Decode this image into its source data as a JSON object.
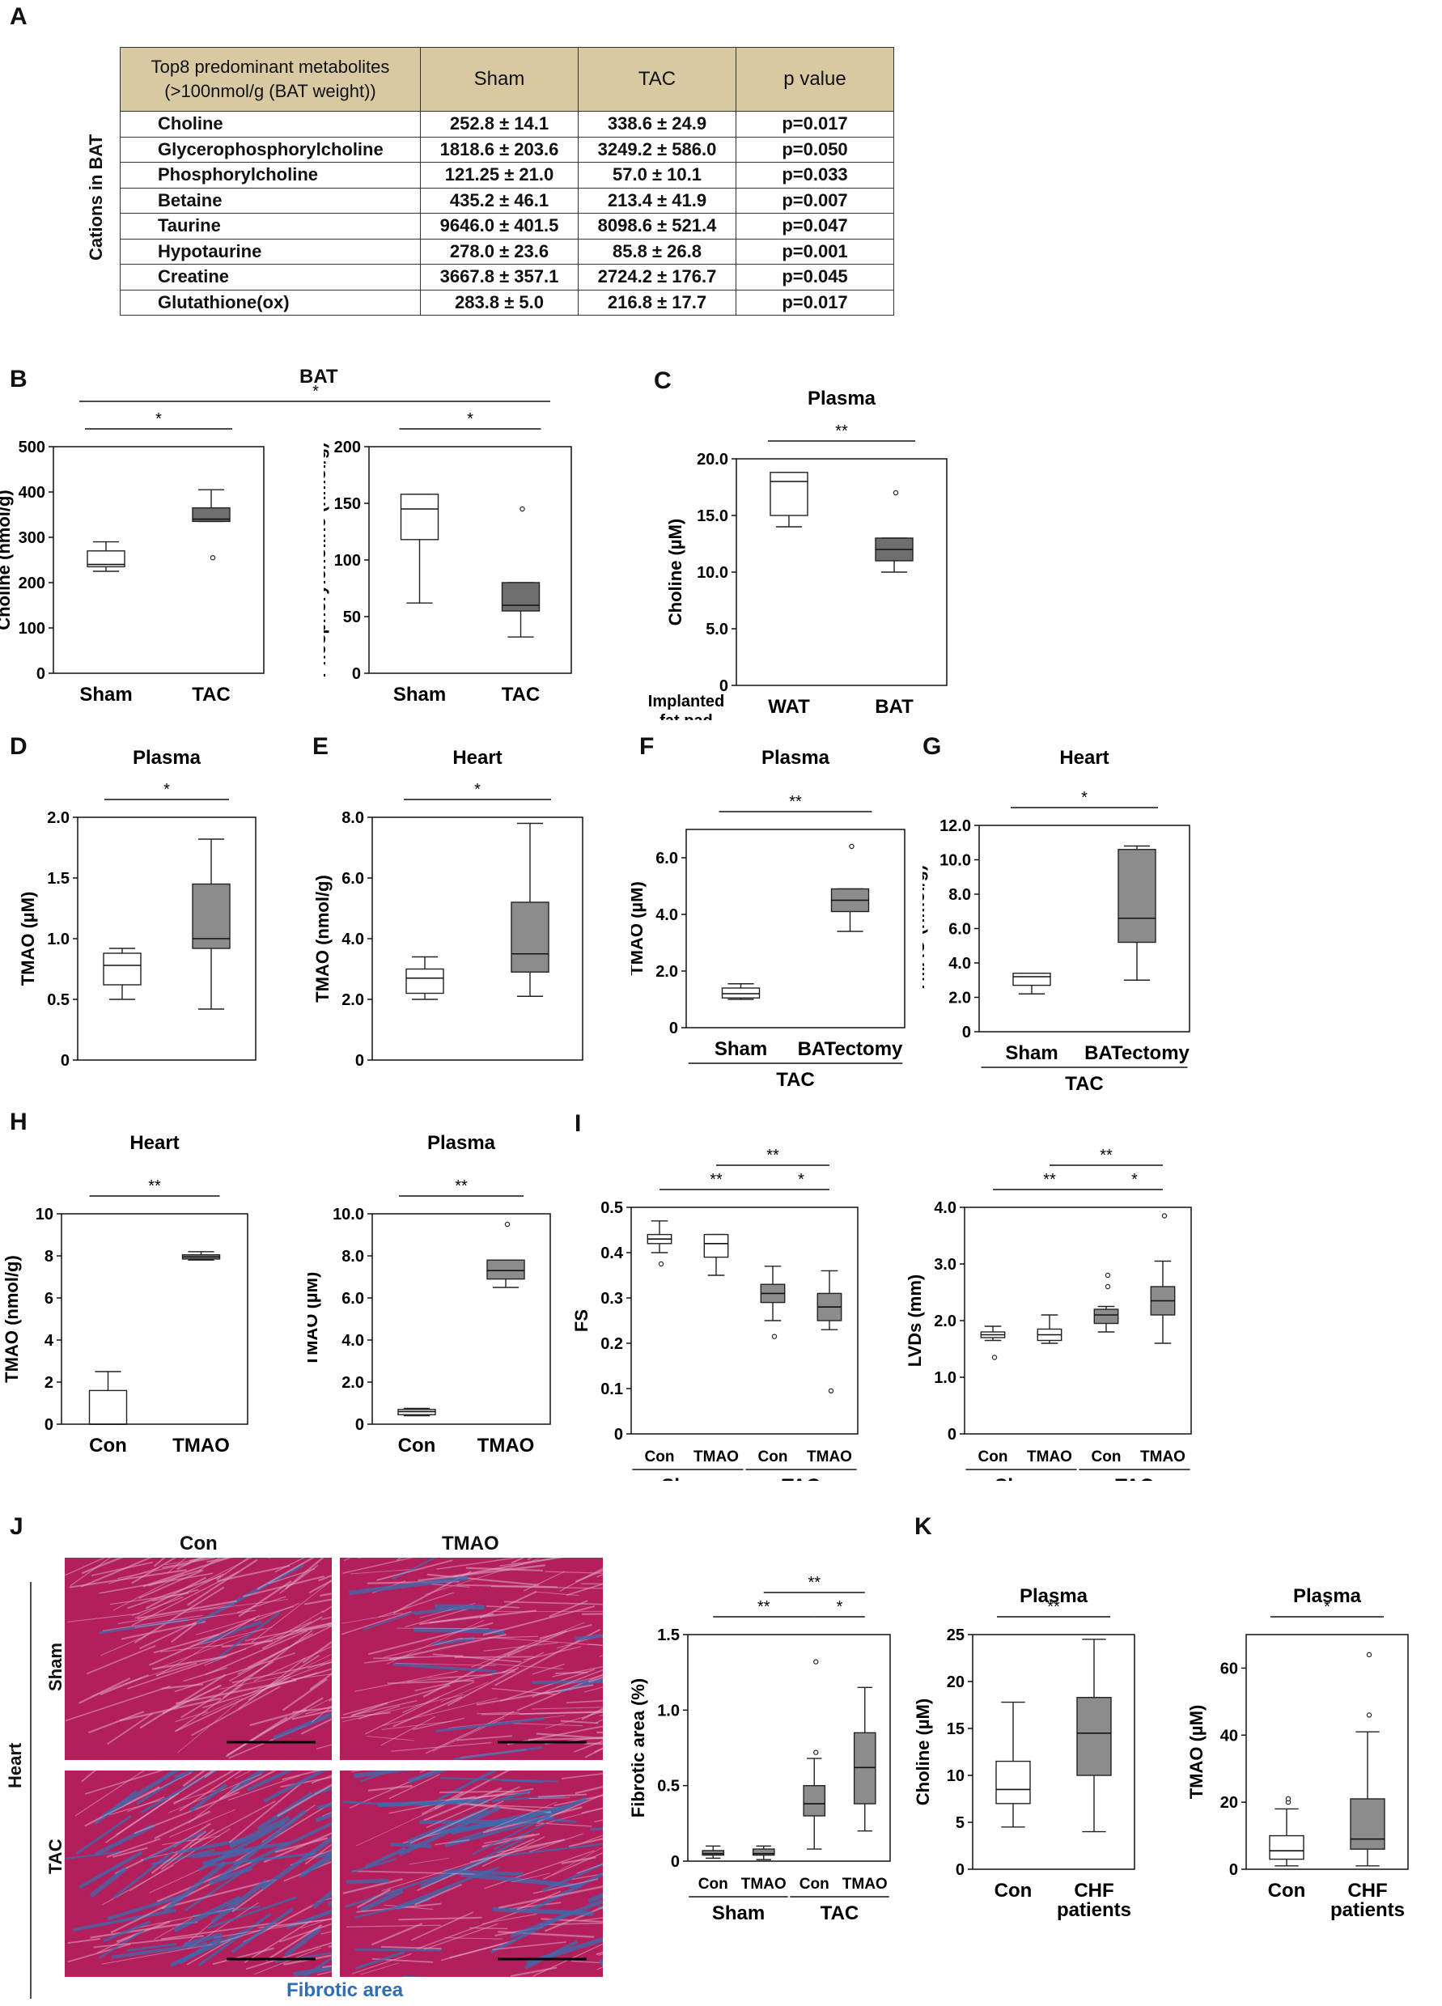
{
  "panel_letters": [
    "A",
    "B",
    "C",
    "D",
    "E",
    "F",
    "G",
    "H",
    "I",
    "J",
    "K"
  ],
  "table": {
    "side_label": "Cations in BAT",
    "header": [
      "Top8 predominant metabolites\n(>100nmol/g (BAT weight))",
      "Sham",
      "TAC",
      "p value"
    ],
    "rows": [
      [
        "Choline",
        "252.8 ± 14.1",
        "338.6 ± 24.9",
        "p=0.017"
      ],
      [
        "Glycerophosphorylcholine",
        "1818.6 ± 203.6",
        "3249.2 ± 586.0",
        "p=0.050"
      ],
      [
        "Phosphorylcholine",
        "121.25 ± 21.0",
        "57.0 ± 10.1",
        "p=0.033"
      ],
      [
        "Betaine",
        "435.2 ± 46.1",
        "213.4 ± 41.9",
        "p=0.007"
      ],
      [
        "Taurine",
        "9646.0 ± 401.5",
        "8098.6 ± 521.4",
        "p=0.047"
      ],
      [
        "Hypotaurine",
        "278.0 ± 23.6",
        "85.8 ± 26.8",
        "p=0.001"
      ],
      [
        "Creatine",
        "3667.8 ± 357.1",
        "2724.2 ± 176.7",
        "p=0.045"
      ],
      [
        "Glutathione(ox)",
        "283.8 ± 5.0",
        "216.8 ± 17.7",
        "p=0.017"
      ]
    ]
  },
  "panel_b_title": "BAT",
  "panel_b_star": "*",
  "panel_j": {
    "col_labels": [
      "Con",
      "TMAO"
    ],
    "row_labels": [
      "Sham",
      "TAC"
    ],
    "side_label": "Heart",
    "caption": "Fibrotic area",
    "colors": {
      "muscle": "#b21f5a",
      "fibrosis": "#3a6cb0",
      "fiber_light": "#e0a8c8"
    }
  },
  "colors": {
    "white_box": "#ffffff",
    "gray_box": "#8c8c8c",
    "dark_box": "#6e6e6e",
    "caption_blue": "#2f6db5",
    "table_header": "#d8c9a3"
  },
  "chart_data": [
    {
      "id": "B1",
      "type": "box",
      "title": "",
      "ylabel": "Choline (nmol/g)",
      "ylim": [
        0,
        500
      ],
      "yticks": [
        "0",
        "100",
        "200",
        "300",
        "400",
        "500"
      ],
      "categories": [
        "Sham",
        "TAC"
      ],
      "group_labels": [],
      "sig": [
        {
          "from": 0,
          "to": 1,
          "label": "*",
          "level": 0
        }
      ],
      "boxes": [
        {
          "min": 225,
          "q1": 235,
          "med": 240,
          "q3": 270,
          "max": 290,
          "fill": "white",
          "outliers": []
        },
        {
          "min": 335,
          "q1": 335,
          "med": 340,
          "q3": 365,
          "max": 405,
          "fill": "dark",
          "outliers": [
            255
          ]
        }
      ]
    },
    {
      "id": "B2",
      "type": "box",
      "title": "",
      "ylabel": "Phosphorylcholine (nmol/g)",
      "ylim": [
        0,
        200
      ],
      "yticks": [
        "0",
        "50",
        "100",
        "150",
        "200"
      ],
      "categories": [
        "Sham",
        "TAC"
      ],
      "group_labels": [],
      "sig": [
        {
          "from": 0,
          "to": 1,
          "label": "*",
          "level": 0
        }
      ],
      "boxes": [
        {
          "min": 62,
          "q1": 118,
          "med": 145,
          "q3": 158,
          "max": 158,
          "fill": "white",
          "outliers": []
        },
        {
          "min": 32,
          "q1": 55,
          "med": 60,
          "q3": 80,
          "max": 80,
          "fill": "dark",
          "outliers": [
            145
          ]
        }
      ]
    },
    {
      "id": "C",
      "type": "box",
      "title": "Plasma",
      "ylabel": "Choline (µM)",
      "ylim": [
        0,
        20
      ],
      "yticks": [
        "0",
        "5.0",
        "10.0",
        "15.0",
        "20.0"
      ],
      "categories": [
        "WAT",
        "BAT"
      ],
      "xprefix": "Implanted\nfat pad",
      "group_labels": [],
      "sig": [
        {
          "from": 0,
          "to": 1,
          "label": "**",
          "level": 0
        }
      ],
      "boxes": [
        {
          "min": 14,
          "q1": 15,
          "med": 18,
          "q3": 18.8,
          "max": 18.8,
          "fill": "white",
          "outliers": []
        },
        {
          "min": 10,
          "q1": 11,
          "med": 12,
          "q3": 13,
          "max": 13,
          "fill": "dark",
          "outliers": [
            17
          ]
        }
      ]
    },
    {
      "id": "D",
      "type": "box",
      "title": "Plasma",
      "ylabel": "TMAO (µM)",
      "ylim": [
        0,
        2
      ],
      "yticks": [
        "0",
        "0.5",
        "1.0",
        "1.5",
        "2.0"
      ],
      "categories": [
        "Sham",
        "TAC"
      ],
      "group_labels": [],
      "sig": [
        {
          "from": 0,
          "to": 1,
          "label": "*",
          "level": 0
        }
      ],
      "boxes": [
        {
          "min": 0.5,
          "q1": 0.62,
          "med": 0.78,
          "q3": 0.88,
          "max": 0.92,
          "fill": "white",
          "outliers": []
        },
        {
          "min": 0.42,
          "q1": 0.92,
          "med": 1.0,
          "q3": 1.45,
          "max": 1.82,
          "fill": "gray",
          "outliers": []
        }
      ]
    },
    {
      "id": "E",
      "type": "box",
      "title": "Heart",
      "ylabel": "TMAO (nmol/g)",
      "ylim": [
        0,
        8
      ],
      "yticks": [
        "0",
        "2.0",
        "4.0",
        "6.0",
        "8.0"
      ],
      "categories": [
        "Sham",
        "TAC"
      ],
      "group_labels": [],
      "sig": [
        {
          "from": 0,
          "to": 1,
          "label": "*",
          "level": 0
        }
      ],
      "boxes": [
        {
          "min": 2.0,
          "q1": 2.2,
          "med": 2.7,
          "q3": 3.0,
          "max": 3.4,
          "fill": "white",
          "outliers": []
        },
        {
          "min": 2.1,
          "q1": 2.9,
          "med": 3.5,
          "q3": 5.2,
          "max": 7.8,
          "fill": "gray",
          "outliers": []
        }
      ]
    },
    {
      "id": "F",
      "type": "box",
      "title": "Plasma",
      "ylabel": "TMAO (µM)",
      "ylim": [
        0,
        7
      ],
      "yticks": [
        "0",
        "2.0",
        "4.0",
        "6.0"
      ],
      "categories": [
        "Sham",
        "BATectomy"
      ],
      "group_labels": [
        {
          "from": 0,
          "to": 1,
          "label": "TAC"
        }
      ],
      "sig": [
        {
          "from": 0,
          "to": 1,
          "label": "**",
          "level": 0
        }
      ],
      "boxes": [
        {
          "min": 1.0,
          "q1": 1.05,
          "med": 1.2,
          "q3": 1.4,
          "max": 1.55,
          "fill": "white",
          "outliers": []
        },
        {
          "min": 3.4,
          "q1": 4.1,
          "med": 4.5,
          "q3": 4.9,
          "max": 4.9,
          "fill": "gray",
          "outliers": [
            6.4
          ]
        }
      ]
    },
    {
      "id": "G",
      "type": "box",
      "title": "Heart",
      "ylabel": "TMAO (nmol/g)",
      "ylim": [
        0,
        12
      ],
      "yticks": [
        "0",
        "2.0",
        "4.0",
        "6.0",
        "8.0",
        "10.0",
        "12.0"
      ],
      "categories": [
        "Sham",
        "BATectomy"
      ],
      "group_labels": [
        {
          "from": 0,
          "to": 1,
          "label": "TAC"
        }
      ],
      "sig": [
        {
          "from": 0,
          "to": 1,
          "label": "*",
          "level": 0
        }
      ],
      "boxes": [
        {
          "min": 2.2,
          "q1": 2.7,
          "med": 3.2,
          "q3": 3.4,
          "max": 3.4,
          "fill": "white",
          "outliers": []
        },
        {
          "min": 3.0,
          "q1": 5.2,
          "med": 6.6,
          "q3": 10.6,
          "max": 10.8,
          "fill": "gray",
          "outliers": []
        }
      ]
    },
    {
      "id": "H1",
      "type": "box",
      "title": "Heart",
      "ylabel": "TMAO (nmol/g)",
      "ylim": [
        0,
        10
      ],
      "yticks": [
        "0",
        "2",
        "4",
        "6",
        "8",
        "10"
      ],
      "categories": [
        "Con",
        "TMAO"
      ],
      "group_labels": [],
      "sig": [
        {
          "from": 0,
          "to": 1,
          "label": "**",
          "level": 0
        }
      ],
      "boxes": [
        {
          "min": 0,
          "q1": 0,
          "med": 0,
          "q3": 1.6,
          "max": 2.5,
          "fill": "white",
          "outliers": []
        },
        {
          "min": 7.8,
          "q1": 7.85,
          "med": 7.95,
          "q3": 8.05,
          "max": 8.2,
          "fill": "gray",
          "outliers": []
        }
      ]
    },
    {
      "id": "H2",
      "type": "box",
      "title": "Plasma",
      "ylabel": "TMAO (µM)",
      "ylim": [
        0,
        10
      ],
      "yticks": [
        "0",
        "2.0",
        "4.0",
        "6.0",
        "8.0",
        "10.0"
      ],
      "categories": [
        "Con",
        "TMAO"
      ],
      "group_labels": [],
      "sig": [
        {
          "from": 0,
          "to": 1,
          "label": "**",
          "level": 0
        }
      ],
      "boxes": [
        {
          "min": 0.4,
          "q1": 0.45,
          "med": 0.6,
          "q3": 0.7,
          "max": 0.75,
          "fill": "white",
          "outliers": []
        },
        {
          "min": 6.5,
          "q1": 6.9,
          "med": 7.3,
          "q3": 7.8,
          "max": 7.8,
          "fill": "gray",
          "outliers": [
            9.5
          ]
        }
      ]
    },
    {
      "id": "I1",
      "type": "box",
      "title": "",
      "ylabel": "FS",
      "ylim": [
        0,
        0.5
      ],
      "yticks": [
        "0",
        "0.1",
        "0.2",
        "0.3",
        "0.4",
        "0.5"
      ],
      "categories": [
        "Con",
        "TMAO",
        "Con",
        "TMAO"
      ],
      "group_labels": [
        {
          "from": 0,
          "to": 1,
          "label": "Sham"
        },
        {
          "from": 2,
          "to": 3,
          "label": "TAC"
        }
      ],
      "sig": [
        {
          "from": 2,
          "to": 3,
          "label": "*",
          "level": 0
        },
        {
          "from": 0,
          "to": 2,
          "label": "**",
          "level": 0
        },
        {
          "from": 1,
          "to": 3,
          "label": "**",
          "level": 1
        }
      ],
      "boxes": [
        {
          "min": 0.4,
          "q1": 0.42,
          "med": 0.43,
          "q3": 0.44,
          "max": 0.47,
          "fill": "white",
          "outliers": [
            0.375
          ]
        },
        {
          "min": 0.35,
          "q1": 0.39,
          "med": 0.42,
          "q3": 0.44,
          "max": 0.44,
          "fill": "white",
          "outliers": []
        },
        {
          "min": 0.25,
          "q1": 0.29,
          "med": 0.31,
          "q3": 0.33,
          "max": 0.37,
          "fill": "gray",
          "outliers": [
            0.215
          ]
        },
        {
          "min": 0.23,
          "q1": 0.25,
          "med": 0.28,
          "q3": 0.31,
          "max": 0.36,
          "fill": "gray",
          "outliers": [
            0.095
          ]
        }
      ]
    },
    {
      "id": "I2",
      "type": "box",
      "title": "",
      "ylabel": "LVDs (mm)",
      "ylim": [
        0,
        4
      ],
      "yticks": [
        "0",
        "1.0",
        "2.0",
        "3.0",
        "4.0"
      ],
      "categories": [
        "Con",
        "TMAO",
        "Con",
        "TMAO"
      ],
      "group_labels": [
        {
          "from": 0,
          "to": 1,
          "label": "Sham"
        },
        {
          "from": 2,
          "to": 3,
          "label": "TAC"
        }
      ],
      "sig": [
        {
          "from": 2,
          "to": 3,
          "label": "*",
          "level": 0
        },
        {
          "from": 0,
          "to": 2,
          "label": "**",
          "level": 0
        },
        {
          "from": 1,
          "to": 3,
          "label": "**",
          "level": 1
        }
      ],
      "boxes": [
        {
          "min": 1.65,
          "q1": 1.7,
          "med": 1.75,
          "q3": 1.8,
          "max": 1.9,
          "fill": "white",
          "outliers": [
            1.35
          ]
        },
        {
          "min": 1.6,
          "q1": 1.65,
          "med": 1.75,
          "q3": 1.85,
          "max": 2.1,
          "fill": "white",
          "outliers": []
        },
        {
          "min": 1.8,
          "q1": 1.95,
          "med": 2.1,
          "q3": 2.2,
          "max": 2.25,
          "fill": "gray",
          "outliers": [
            2.6,
            2.8
          ]
        },
        {
          "min": 1.6,
          "q1": 2.1,
          "med": 2.35,
          "q3": 2.6,
          "max": 3.05,
          "fill": "gray",
          "outliers": [
            3.85
          ]
        }
      ]
    },
    {
      "id": "J",
      "type": "box",
      "title": "",
      "ylabel": "Fibrotic area (%)",
      "ylim": [
        0,
        1.5
      ],
      "yticks": [
        "0",
        "0.5",
        "1.0",
        "1.5"
      ],
      "categories": [
        "Con",
        "TMAO",
        "Con",
        "TMAO"
      ],
      "group_labels": [
        {
          "from": 0,
          "to": 1,
          "label": "Sham"
        },
        {
          "from": 2,
          "to": 3,
          "label": "TAC"
        }
      ],
      "sig": [
        {
          "from": 2,
          "to": 3,
          "label": "*",
          "level": 0
        },
        {
          "from": 0,
          "to": 2,
          "label": "**",
          "level": 0
        },
        {
          "from": 1,
          "to": 3,
          "label": "**",
          "level": 1
        }
      ],
      "boxes": [
        {
          "min": 0.02,
          "q1": 0.04,
          "med": 0.05,
          "q3": 0.07,
          "max": 0.1,
          "fill": "gray",
          "outliers": []
        },
        {
          "min": 0.01,
          "q1": 0.04,
          "med": 0.05,
          "q3": 0.08,
          "max": 0.1,
          "fill": "gray",
          "outliers": []
        },
        {
          "min": 0.08,
          "q1": 0.3,
          "med": 0.38,
          "q3": 0.5,
          "max": 0.68,
          "fill": "gray",
          "outliers": [
            0.72,
            1.32
          ]
        },
        {
          "min": 0.2,
          "q1": 0.38,
          "med": 0.62,
          "q3": 0.85,
          "max": 1.15,
          "fill": "gray",
          "outliers": []
        }
      ]
    },
    {
      "id": "K1",
      "type": "box",
      "title": "Plasma",
      "ylabel": "Choline (µM)",
      "ylim": [
        0,
        25
      ],
      "yticks": [
        "0",
        "5",
        "10",
        "15",
        "20",
        "25"
      ],
      "categories": [
        "Con",
        "CHF\npatients"
      ],
      "group_labels": [],
      "sig": [
        {
          "from": 0,
          "to": 1,
          "label": "**",
          "level": 0
        }
      ],
      "boxes": [
        {
          "min": 4.5,
          "q1": 7.0,
          "med": 8.5,
          "q3": 11.5,
          "max": 17.8,
          "fill": "white",
          "outliers": []
        },
        {
          "min": 4.0,
          "q1": 10.0,
          "med": 14.5,
          "q3": 18.3,
          "max": 24.5,
          "fill": "gray",
          "outliers": []
        }
      ]
    },
    {
      "id": "K2",
      "type": "box",
      "title": "Plasma",
      "ylabel": "TMAO (µM)",
      "ylim": [
        0,
        70
      ],
      "yticks": [
        "0",
        "20",
        "40",
        "60"
      ],
      "categories": [
        "Con",
        "CHF\npatients"
      ],
      "group_labels": [],
      "sig": [
        {
          "from": 0,
          "to": 1,
          "label": "*",
          "level": 0
        }
      ],
      "boxes": [
        {
          "min": 1,
          "q1": 3,
          "med": 5.5,
          "q3": 10,
          "max": 18,
          "fill": "white",
          "outliers": [
            20,
            21
          ]
        },
        {
          "min": 1,
          "q1": 6,
          "med": 9,
          "q3": 21,
          "max": 41,
          "fill": "gray",
          "outliers": [
            46,
            64
          ]
        }
      ]
    }
  ]
}
